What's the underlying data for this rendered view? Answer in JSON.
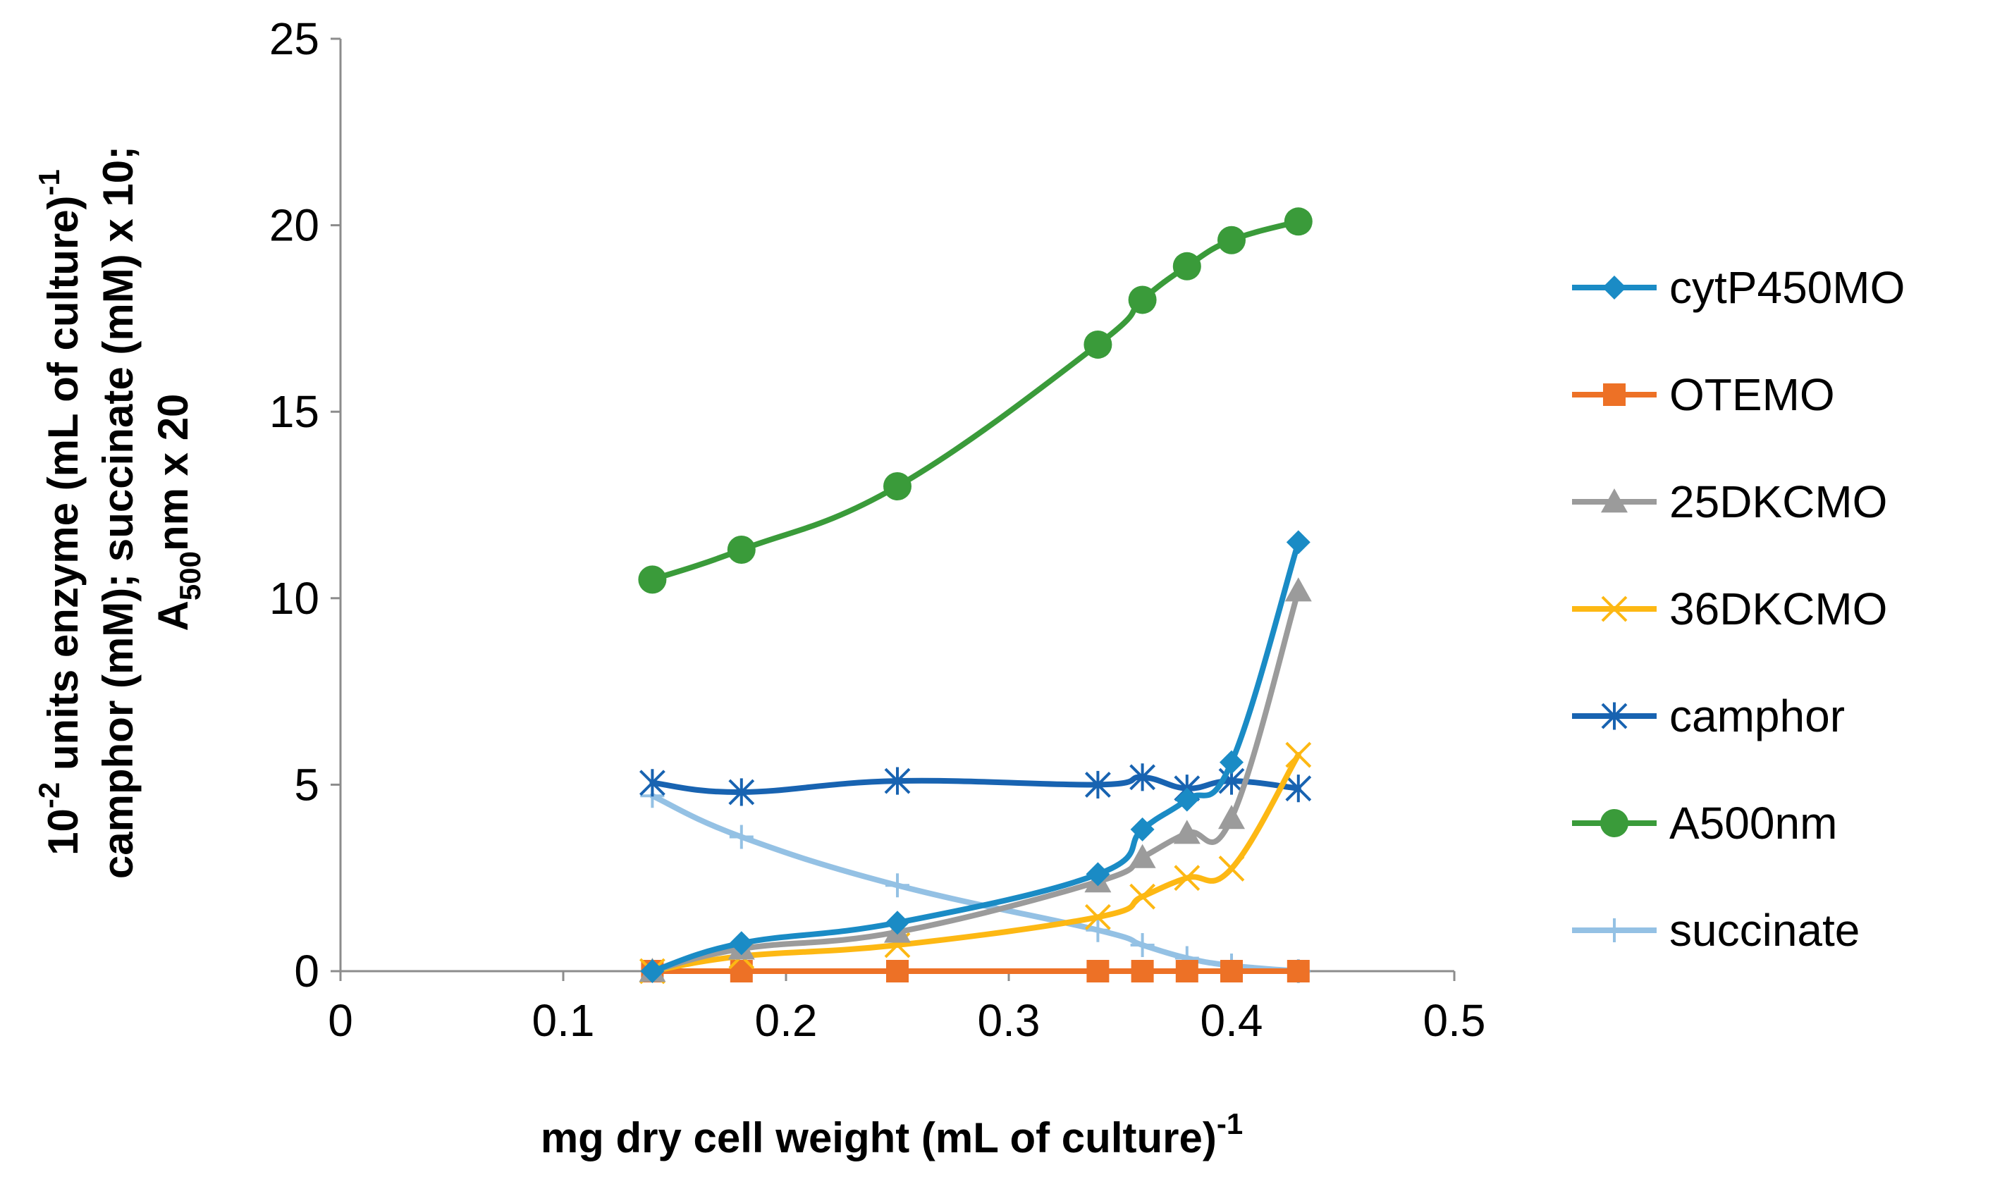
{
  "chart_data": {
    "type": "line",
    "title": "",
    "xlabel": {
      "main": "mg dry cell weight (mL of culture)",
      "sup": "-1"
    },
    "ylabel": {
      "line1_a": "10",
      "line1_sup1": "-2",
      "line1_b": " units enzyme (mL of culture)",
      "line1_sup2": "-1",
      "line2": "camphor (mM); succinate (mM) x 10;",
      "line3_a": "A",
      "line3_sub": "500",
      "line3_b": "nm x 20"
    },
    "xlim": [
      0,
      0.5
    ],
    "ylim": [
      0,
      25
    ],
    "x_ticks": [
      "0",
      "0.1",
      "0.2",
      "0.3",
      "0.4",
      "0.5"
    ],
    "y_ticks": [
      "0",
      "5",
      "10",
      "15",
      "20",
      "25"
    ],
    "legend_position": "right",
    "grid": false,
    "x": [
      0.14,
      0.18,
      0.25,
      0.34,
      0.36,
      0.38,
      0.4,
      0.43
    ],
    "series": [
      {
        "name": "cytP450MO",
        "color": "#1a8bc5",
        "marker": "diamond",
        "values": [
          0.0,
          0.75,
          1.3,
          2.6,
          3.8,
          4.6,
          5.6,
          11.5
        ]
      },
      {
        "name": "OTEMO",
        "color": "#ed7126",
        "marker": "square",
        "values": [
          0.0,
          0.0,
          0.0,
          0.0,
          0.0,
          0.0,
          0.0,
          0.0
        ]
      },
      {
        "name": "25DKCMO",
        "color": "#9b9b9b",
        "marker": "triangle",
        "values": [
          0.0,
          0.6,
          1.05,
          2.4,
          3.05,
          3.7,
          4.1,
          10.2
        ]
      },
      {
        "name": "36DKCMO",
        "color": "#fdb813",
        "marker": "x",
        "values": [
          0.0,
          0.4,
          0.7,
          1.45,
          2.0,
          2.5,
          2.75,
          5.8
        ]
      },
      {
        "name": "camphor",
        "color": "#1863b1",
        "marker": "star",
        "values": [
          5.05,
          4.8,
          5.1,
          5.0,
          5.2,
          4.9,
          5.1,
          4.9
        ]
      },
      {
        "name": "A500nm",
        "color": "#3a9b3a",
        "marker": "circle",
        "values": [
          10.5,
          11.3,
          13.0,
          16.8,
          18.0,
          18.9,
          19.6,
          20.1
        ]
      },
      {
        "name": "succinate",
        "color": "#94c1e4",
        "marker": "plus",
        "values": [
          4.7,
          3.6,
          2.3,
          1.1,
          0.7,
          0.35,
          0.15,
          0.0
        ]
      }
    ]
  }
}
